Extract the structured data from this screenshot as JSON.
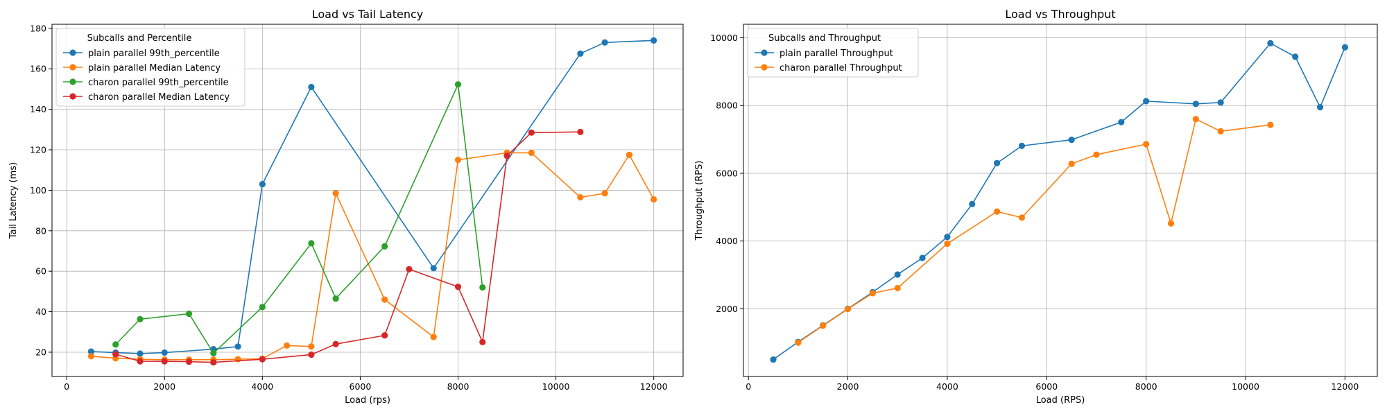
{
  "chart_data": [
    {
      "type": "line",
      "title": "Load vs Tail Latency",
      "xlabel": "Load (rps)",
      "ylabel": "Tail Latency (ms)",
      "xlim": [
        -300,
        12600
      ],
      "ylim": [
        8,
        182
      ],
      "xticks": [
        0,
        2000,
        4000,
        6000,
        8000,
        10000,
        12000
      ],
      "yticks": [
        20,
        40,
        60,
        80,
        100,
        120,
        140,
        160,
        180
      ],
      "grid": true,
      "legend": {
        "title": "Subcalls and Percentile",
        "placement": "top-left"
      },
      "series": [
        {
          "name": "plain parallel 99th_percentile",
          "color": "#1f77b4",
          "points": [
            [
              500,
              20.3
            ],
            [
              1000,
              19.8
            ],
            [
              1500,
              19.3
            ],
            [
              2000,
              19.8
            ],
            [
              3000,
              21.5
            ],
            [
              3500,
              22.8
            ],
            [
              4000,
              103
            ],
            [
              5000,
              151
            ],
            [
              7500,
              61.5
            ],
            [
              10500,
              167.5
            ],
            [
              11000,
              173
            ],
            [
              12000,
              174
            ]
          ]
        },
        {
          "name": "plain parallel Median Latency",
          "color": "#ff7f0e",
          "points": [
            [
              500,
              18
            ],
            [
              1000,
              17
            ],
            [
              1500,
              16.5
            ],
            [
              2000,
              16.3
            ],
            [
              2500,
              16.3
            ],
            [
              3000,
              16.3
            ],
            [
              3500,
              16.5
            ],
            [
              4000,
              16.8
            ],
            [
              4500,
              23.3
            ],
            [
              5000,
              22.8
            ],
            [
              5500,
              98.5
            ],
            [
              6500,
              46
            ],
            [
              7500,
              27.5
            ],
            [
              8000,
              115
            ],
            [
              9000,
              118.5
            ],
            [
              9500,
              118.5
            ],
            [
              10500,
              96.5
            ],
            [
              11000,
              98.5
            ],
            [
              11500,
              117.5
            ],
            [
              12000,
              95.5
            ]
          ]
        },
        {
          "name": "charon parallel 99th_percentile",
          "color": "#2ca02c",
          "points": [
            [
              1000,
              23.8
            ],
            [
              1500,
              36.3
            ],
            [
              2500,
              39
            ],
            [
              3000,
              19.5
            ],
            [
              4000,
              42.3
            ],
            [
              5000,
              73.8
            ],
            [
              5500,
              46.5
            ],
            [
              6500,
              72.3
            ],
            [
              8000,
              152.3
            ],
            [
              8500,
              52
            ]
          ]
        },
        {
          "name": "charon parallel Median Latency",
          "color": "#d62728",
          "points": [
            [
              1000,
              19
            ],
            [
              1500,
              15.5
            ],
            [
              2000,
              15.5
            ],
            [
              2500,
              15.3
            ],
            [
              3000,
              15
            ],
            [
              4000,
              16.5
            ],
            [
              5000,
              18.8
            ],
            [
              5500,
              24
            ],
            [
              6500,
              28.3
            ],
            [
              7000,
              61
            ],
            [
              8000,
              52.3
            ],
            [
              8500,
              25
            ],
            [
              9000,
              117
            ],
            [
              9500,
              128.5
            ],
            [
              10500,
              128.8
            ]
          ]
        }
      ]
    },
    {
      "type": "line",
      "title": "Load vs Throughput",
      "xlabel": "Load (RPS)",
      "ylabel": "Throughput (RPS)",
      "xlim": [
        -100,
        12650
      ],
      "ylim": [
        0,
        10400
      ],
      "xticks": [
        0,
        2000,
        4000,
        6000,
        8000,
        10000,
        12000
      ],
      "yticks": [
        2000,
        4000,
        6000,
        8000,
        10000
      ],
      "grid": true,
      "legend": {
        "title": "Subcalls and Throughput",
        "placement": "top-left"
      },
      "series": [
        {
          "name": "plain parallel Throughput",
          "color": "#1f77b4",
          "points": [
            [
              500,
              500
            ],
            [
              1000,
              1020
            ],
            [
              1500,
              1510
            ],
            [
              2000,
              2000
            ],
            [
              2500,
              2490
            ],
            [
              3000,
              3010
            ],
            [
              3500,
              3500
            ],
            [
              4000,
              4120
            ],
            [
              4500,
              5090
            ],
            [
              5000,
              6300
            ],
            [
              5500,
              6810
            ],
            [
              6500,
              6990
            ],
            [
              7500,
              7510
            ],
            [
              8000,
              8130
            ],
            [
              9000,
              8050
            ],
            [
              9500,
              8090
            ],
            [
              10500,
              9840
            ],
            [
              11000,
              9440
            ],
            [
              11500,
              7950
            ],
            [
              12000,
              9720
            ]
          ]
        },
        {
          "name": "charon parallel Throughput",
          "color": "#ff7f0e",
          "points": [
            [
              1000,
              1000
            ],
            [
              1500,
              1500
            ],
            [
              2000,
              1990
            ],
            [
              2500,
              2460
            ],
            [
              3000,
              2610
            ],
            [
              4000,
              3920
            ],
            [
              5000,
              4870
            ],
            [
              5500,
              4690
            ],
            [
              6500,
              6280
            ],
            [
              7000,
              6550
            ],
            [
              8000,
              6860
            ],
            [
              8500,
              4520
            ],
            [
              9000,
              7600
            ],
            [
              9500,
              7240
            ],
            [
              10500,
              7430
            ]
          ]
        }
      ]
    }
  ]
}
